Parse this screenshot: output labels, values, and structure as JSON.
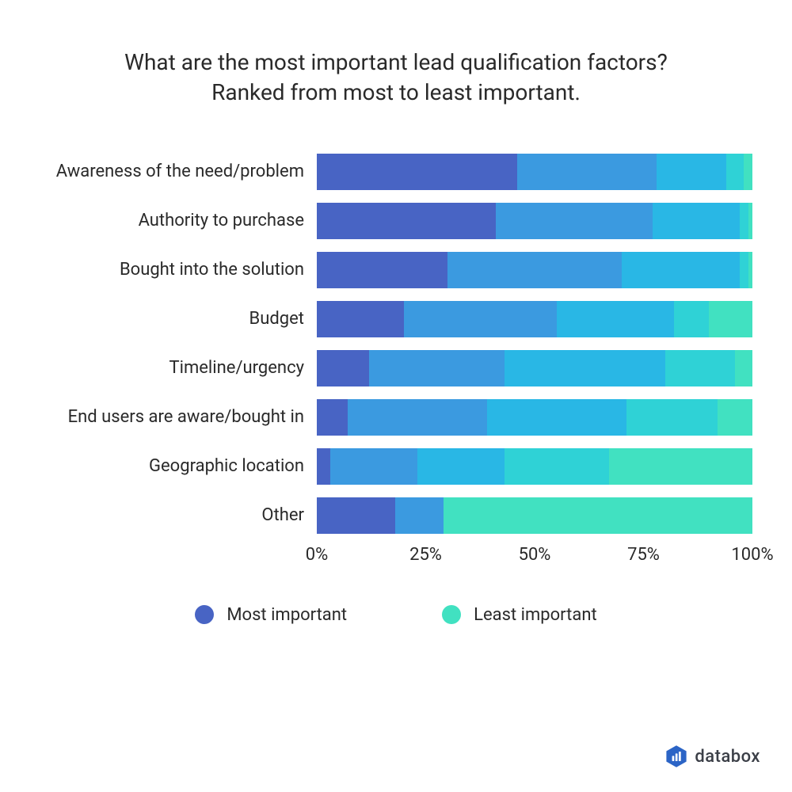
{
  "title_line1": "What are the most important lead qualification factors?",
  "title_line2": "Ranked from most to least important.",
  "chart": {
    "type": "stacked-bar-horizontal",
    "colors": [
      "#4864c4",
      "#3b9ae0",
      "#29b7e5",
      "#2fd2d6",
      "#41e1c1"
    ],
    "background_color": "#ffffff",
    "categories": [
      {
        "label": "Awareness of the need/problem",
        "values": [
          46,
          32,
          16,
          4,
          2
        ]
      },
      {
        "label": "Authority to purchase",
        "values": [
          41,
          36,
          20,
          2,
          1
        ]
      },
      {
        "label": "Bought into the solution",
        "values": [
          30,
          40,
          27,
          2,
          1
        ]
      },
      {
        "label": "Budget",
        "values": [
          20,
          35,
          27,
          8,
          10
        ]
      },
      {
        "label": "Timeline/urgency",
        "values": [
          12,
          31,
          37,
          16,
          4
        ]
      },
      {
        "label": "End users are aware/bought in",
        "values": [
          7,
          32,
          32,
          21,
          8
        ]
      },
      {
        "label": "Geographic location",
        "values": [
          3,
          20,
          20,
          24,
          33
        ]
      },
      {
        "label": "Other",
        "values": [
          18,
          11,
          0,
          0,
          71
        ]
      }
    ],
    "xaxis": {
      "ticks": [
        0,
        25,
        50,
        75,
        100
      ],
      "labels": [
        "0%",
        "25%",
        "50%",
        "75%",
        "100%"
      ]
    }
  },
  "legend": {
    "most": {
      "label": "Most important",
      "color": "#4864c4"
    },
    "least": {
      "label": "Least important",
      "color": "#41e1c1"
    }
  },
  "brand": {
    "name": "databox",
    "color": "#2b64c6"
  }
}
